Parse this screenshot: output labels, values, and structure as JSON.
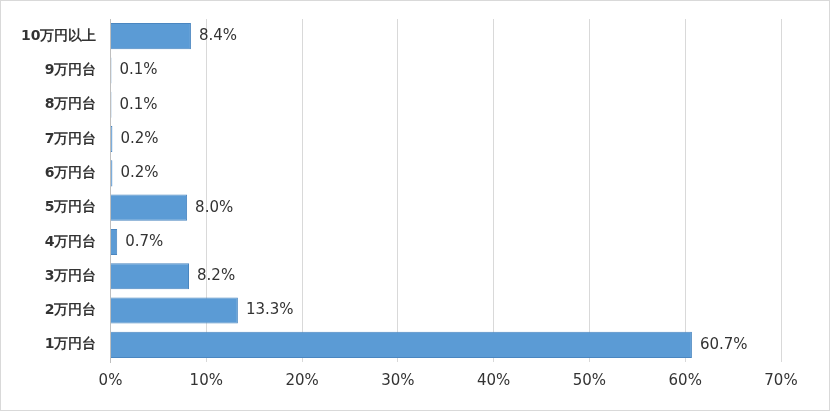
{
  "chart_data": {
    "type": "bar",
    "orientation": "horizontal",
    "categories": [
      "10万円以上",
      "9万円台",
      "8万円台",
      "7万円台",
      "6万円台",
      "5万円台",
      "4万円台",
      "3万円台",
      "2万円台",
      "1万円台"
    ],
    "values": [
      8.4,
      0.1,
      0.1,
      0.2,
      0.2,
      8.0,
      0.7,
      8.2,
      13.3,
      60.7
    ],
    "value_labels": [
      "8.4%",
      "0.1%",
      "0.1%",
      "0.2%",
      "0.2%",
      "8.0%",
      "0.7%",
      "8.2%",
      "13.3%",
      "60.7%"
    ],
    "data_labels": true,
    "color": "#5b9bd5",
    "xlim": [
      0,
      70
    ],
    "xticks": [
      {
        "value": 0,
        "label": "0%"
      },
      {
        "value": 10,
        "label": "10%"
      },
      {
        "value": 20,
        "label": "20%"
      },
      {
        "value": 30,
        "label": "30%"
      },
      {
        "value": 40,
        "label": "40%"
      },
      {
        "value": 50,
        "label": "50%"
      },
      {
        "value": 60,
        "label": "60%"
      },
      {
        "value": 70,
        "label": "70%"
      }
    ],
    "grid": true
  }
}
